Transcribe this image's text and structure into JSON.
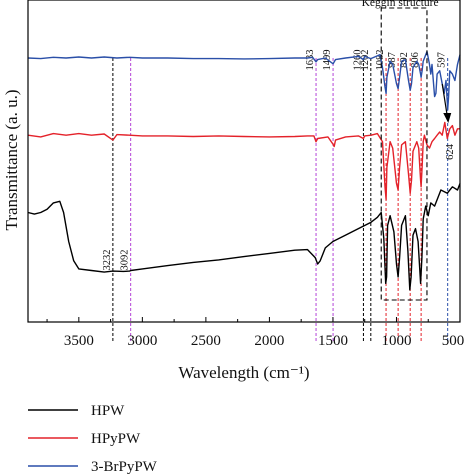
{
  "chart_data": {
    "type": "line",
    "title": "",
    "xlabel": "Wavelength (cm⁻¹)",
    "ylabel": "Transmittance (a. u.)",
    "xlim": [
      3900,
      500
    ],
    "ylim": [
      0,
      100
    ],
    "x_ticks": [
      "3500",
      "3000",
      "2500",
      "2000",
      "1500",
      "1000",
      "500"
    ],
    "x_tick_values": [
      3500,
      3000,
      2500,
      2000,
      1500,
      1000,
      500
    ],
    "y_ticks_shown": false,
    "series": [
      {
        "name": "HPW",
        "color": "#000000",
        "points": [
          [
            3900,
            34
          ],
          [
            3850,
            33.5
          ],
          [
            3800,
            34
          ],
          [
            3750,
            35
          ],
          [
            3700,
            37
          ],
          [
            3650,
            37.5
          ],
          [
            3620,
            34
          ],
          [
            3580,
            25
          ],
          [
            3540,
            19
          ],
          [
            3500,
            16.5
          ],
          [
            3400,
            16
          ],
          [
            3300,
            15.5
          ],
          [
            3232,
            15.8
          ],
          [
            3150,
            15.7
          ],
          [
            3100,
            15.8
          ],
          [
            3092,
            16
          ],
          [
            3000,
            16.5
          ],
          [
            2800,
            17.5
          ],
          [
            2600,
            18.5
          ],
          [
            2400,
            19.3
          ],
          [
            2200,
            20.3
          ],
          [
            2000,
            21.3
          ],
          [
            1800,
            22.3
          ],
          [
            1700,
            22.5
          ],
          [
            1640,
            20
          ],
          [
            1620,
            18
          ],
          [
            1600,
            19
          ],
          [
            1560,
            23
          ],
          [
            1500,
            25
          ],
          [
            1400,
            27
          ],
          [
            1300,
            29
          ],
          [
            1200,
            31
          ],
          [
            1150,
            32.5
          ],
          [
            1120,
            34
          ],
          [
            1100,
            26
          ],
          [
            1085,
            12
          ],
          [
            1078,
            14
          ],
          [
            1070,
            30
          ],
          [
            1050,
            33
          ],
          [
            1020,
            28
          ],
          [
            1000,
            18
          ],
          [
            987,
            14
          ],
          [
            975,
            20
          ],
          [
            960,
            30
          ],
          [
            930,
            33
          ],
          [
            910,
            22
          ],
          [
            895,
            10
          ],
          [
            885,
            14
          ],
          [
            870,
            27
          ],
          [
            850,
            29
          ],
          [
            830,
            25
          ],
          [
            810,
            12
          ],
          [
            800,
            20
          ],
          [
            790,
            32
          ],
          [
            770,
            36
          ],
          [
            750,
            33
          ],
          [
            730,
            37
          ],
          [
            700,
            36
          ],
          [
            650,
            41
          ],
          [
            600,
            40
          ],
          [
            560,
            42
          ],
          [
            520,
            41
          ],
          [
            500,
            43
          ]
        ]
      },
      {
        "name": "HPyPW",
        "color": "#e4222a",
        "points": [
          [
            3900,
            58
          ],
          [
            3800,
            57.5
          ],
          [
            3700,
            58.5
          ],
          [
            3600,
            58
          ],
          [
            3500,
            58.5
          ],
          [
            3400,
            58
          ],
          [
            3300,
            58.4
          ],
          [
            3232,
            56.5
          ],
          [
            3200,
            58.2
          ],
          [
            3100,
            58
          ],
          [
            3000,
            57.8
          ],
          [
            2800,
            57.8
          ],
          [
            2600,
            57.6
          ],
          [
            2400,
            57.8
          ],
          [
            2200,
            57.6
          ],
          [
            2000,
            57.5
          ],
          [
            1800,
            57.6
          ],
          [
            1700,
            57.8
          ],
          [
            1650,
            57.8
          ],
          [
            1633,
            56
          ],
          [
            1620,
            57
          ],
          [
            1540,
            57.5
          ],
          [
            1499,
            55.2
          ],
          [
            1490,
            54.5
          ],
          [
            1480,
            56.5
          ],
          [
            1400,
            57.5
          ],
          [
            1300,
            57.8
          ],
          [
            1260,
            57
          ],
          [
            1250,
            57.8
          ],
          [
            1200,
            58
          ],
          [
            1150,
            58.5
          ],
          [
            1110,
            56
          ],
          [
            1090,
            42
          ],
          [
            1082,
            38
          ],
          [
            1075,
            48
          ],
          [
            1050,
            56
          ],
          [
            1030,
            54
          ],
          [
            1000,
            43
          ],
          [
            987,
            41
          ],
          [
            975,
            48
          ],
          [
            960,
            55
          ],
          [
            930,
            56
          ],
          [
            905,
            46
          ],
          [
            892,
            40
          ],
          [
            882,
            44
          ],
          [
            870,
            53
          ],
          [
            840,
            56
          ],
          [
            825,
            54
          ],
          [
            810,
            44
          ],
          [
            806,
            42
          ],
          [
            798,
            48
          ],
          [
            790,
            56
          ],
          [
            780,
            58
          ],
          [
            760,
            55
          ],
          [
            740,
            54
          ],
          [
            720,
            56
          ],
          [
            700,
            57
          ],
          [
            680,
            58
          ],
          [
            660,
            59
          ],
          [
            640,
            58
          ],
          [
            620,
            62
          ],
          [
            600,
            57
          ],
          [
            580,
            60
          ],
          [
            560,
            61
          ],
          [
            540,
            58
          ],
          [
            520,
            60
          ],
          [
            500,
            60
          ]
        ]
      },
      {
        "name": "3-BrPyPW",
        "color": "#2a4fa8",
        "points": [
          [
            3900,
            82
          ],
          [
            3800,
            81.8
          ],
          [
            3700,
            82.2
          ],
          [
            3600,
            82
          ],
          [
            3500,
            82.3
          ],
          [
            3400,
            82
          ],
          [
            3300,
            82.3
          ],
          [
            3200,
            82
          ],
          [
            3100,
            82.2
          ],
          [
            3000,
            82
          ],
          [
            2800,
            82
          ],
          [
            2600,
            81.8
          ],
          [
            2400,
            81.8
          ],
          [
            2200,
            81.7
          ],
          [
            2000,
            81.8
          ],
          [
            1800,
            82
          ],
          [
            1700,
            82
          ],
          [
            1660,
            82.2
          ],
          [
            1633,
            80.8
          ],
          [
            1620,
            81.5
          ],
          [
            1560,
            82
          ],
          [
            1499,
            80.2
          ],
          [
            1480,
            81.5
          ],
          [
            1400,
            82
          ],
          [
            1300,
            82.5
          ],
          [
            1260,
            81.5
          ],
          [
            1250,
            82.5
          ],
          [
            1202,
            81.8
          ],
          [
            1160,
            82.5
          ],
          [
            1130,
            83
          ],
          [
            1110,
            79
          ],
          [
            1090,
            73
          ],
          [
            1082,
            71
          ],
          [
            1075,
            76
          ],
          [
            1050,
            81
          ],
          [
            1030,
            80
          ],
          [
            1000,
            74
          ],
          [
            987,
            72.5
          ],
          [
            975,
            76
          ],
          [
            960,
            81
          ],
          [
            930,
            81.5
          ],
          [
            905,
            75
          ],
          [
            892,
            72
          ],
          [
            882,
            74
          ],
          [
            870,
            79
          ],
          [
            840,
            81
          ],
          [
            825,
            80
          ],
          [
            810,
            77
          ],
          [
            806,
            76
          ],
          [
            798,
            78
          ],
          [
            790,
            81
          ],
          [
            760,
            84
          ],
          [
            740,
            80
          ],
          [
            730,
            77
          ],
          [
            720,
            80
          ],
          [
            700,
            70
          ],
          [
            690,
            71
          ],
          [
            680,
            77
          ],
          [
            660,
            78
          ],
          [
            640,
            74
          ],
          [
            624,
            71
          ],
          [
            610,
            75
          ],
          [
            597,
            66
          ],
          [
            590,
            70
          ],
          [
            580,
            78
          ],
          [
            560,
            77
          ],
          [
            540,
            75
          ],
          [
            520,
            80
          ],
          [
            500,
            83
          ]
        ]
      }
    ],
    "reference_lines": [
      {
        "x": 3232,
        "label": "3232",
        "color": "#000000"
      },
      {
        "x": 3092,
        "label": "3092",
        "color": "#b445d8"
      },
      {
        "x": 1633,
        "label": "1633",
        "color": "#b445d8"
      },
      {
        "x": 1499,
        "label": "1499",
        "color": "#b445d8"
      },
      {
        "x": 1260,
        "label": "1260",
        "color": "#000000"
      },
      {
        "x": 1202,
        "label": "1202",
        "color": "#000000"
      },
      {
        "x": 1082,
        "label": "1082",
        "color": "#e4222a"
      },
      {
        "x": 987,
        "label": "987",
        "color": "#e4222a"
      },
      {
        "x": 892,
        "label": "892",
        "color": "#e4222a"
      },
      {
        "x": 806,
        "label": "806",
        "color": "#e4222a"
      },
      {
        "x": 597,
        "label": "597",
        "color": "#2a4fa8"
      }
    ],
    "annotations": {
      "keggin_label": "Keggin structure",
      "keggin_range": [
        1120,
        760
      ],
      "arrow_label": "624",
      "arrow_x": 624
    },
    "legend": {
      "placement": "bottom-left",
      "entries": [
        "HPW",
        "HPyPW",
        "3-BrPyPW"
      ]
    },
    "grid": false
  }
}
